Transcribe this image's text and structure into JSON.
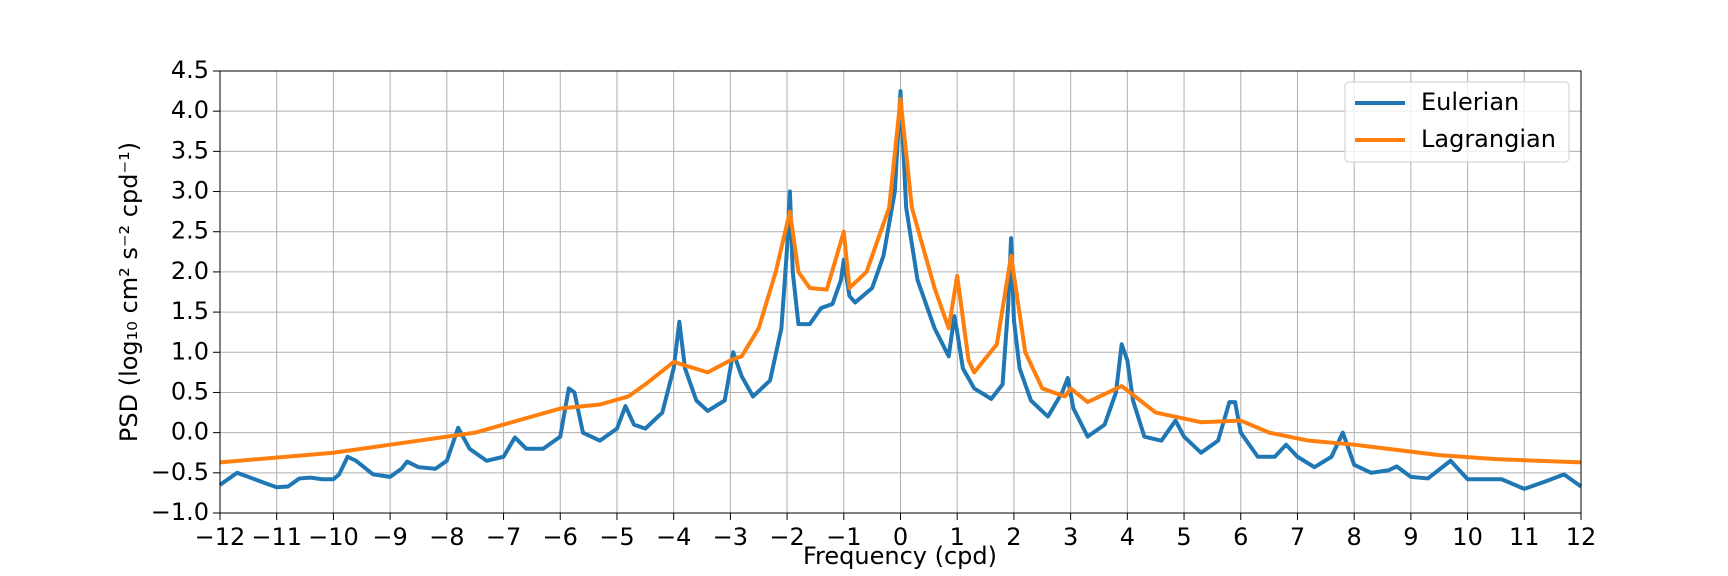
{
  "chart_data": {
    "type": "line",
    "xlabel": "Frequency (cpd)",
    "ylabel": "PSD (log₁₀ cm² s⁻² cpd⁻¹)",
    "xlim": [
      -12,
      12
    ],
    "ylim": [
      -1,
      4.5
    ],
    "xticks": [
      {
        "value": -12,
        "label": "−12"
      },
      {
        "value": -11,
        "label": "−11"
      },
      {
        "value": -10,
        "label": "−10"
      },
      {
        "value": -9,
        "label": "−9"
      },
      {
        "value": -8,
        "label": "−8"
      },
      {
        "value": -7,
        "label": "−7"
      },
      {
        "value": -6,
        "label": "−6"
      },
      {
        "value": -5,
        "label": "−5"
      },
      {
        "value": -4,
        "label": "−4"
      },
      {
        "value": -3,
        "label": "−3"
      },
      {
        "value": -2,
        "label": "−2"
      },
      {
        "value": -1,
        "label": "−1"
      },
      0,
      1,
      2,
      3,
      4,
      5,
      6,
      7,
      8,
      9,
      10,
      11,
      12
    ],
    "yticks": [
      {
        "value": -1,
        "label": "−1.0"
      },
      {
        "value": -0.5,
        "label": "−0.5"
      },
      {
        "value": 0,
        "label": "0.0"
      },
      0.5,
      {
        "value": 1,
        "label": "1.0"
      },
      1.5,
      {
        "value": 2,
        "label": "2.0"
      },
      2.5,
      {
        "value": 3,
        "label": "3.0"
      },
      3.5,
      {
        "value": 4,
        "label": "4.0"
      },
      4.5
    ],
    "grid": true,
    "legend": "upper right",
    "series": [
      {
        "name": "Eulerian",
        "color": "#1f77b4",
        "x": [
          -12,
          -11.8,
          -11.7,
          -11.5,
          -11.2,
          -11,
          -10.8,
          -10.6,
          -10.4,
          -10.2,
          -10,
          -9.9,
          -9.75,
          -9.6,
          -9.3,
          -9,
          -8.8,
          -8.7,
          -8.5,
          -8.2,
          -8,
          -7.8,
          -7.6,
          -7.3,
          -7,
          -6.8,
          -6.6,
          -6.3,
          -6,
          -5.85,
          -5.75,
          -5.6,
          -5.3,
          -5,
          -4.85,
          -4.7,
          -4.5,
          -4.2,
          -4,
          -3.9,
          -3.8,
          -3.6,
          -3.4,
          -3.1,
          -2.95,
          -2.8,
          -2.6,
          -2.3,
          -2.1,
          -2,
          -1.95,
          -1.9,
          -1.8,
          -1.6,
          -1.4,
          -1.2,
          -1.05,
          -1,
          -0.9,
          -0.8,
          -0.5,
          -0.3,
          -0.1,
          0,
          0.1,
          0.3,
          0.6,
          0.85,
          0.95,
          1,
          1.1,
          1.3,
          1.6,
          1.8,
          1.9,
          1.95,
          2,
          2.1,
          2.3,
          2.6,
          2.85,
          2.95,
          3.05,
          3.3,
          3.6,
          3.8,
          3.9,
          4,
          4.1,
          4.3,
          4.6,
          4.85,
          5,
          5.3,
          5.6,
          5.8,
          5.9,
          6,
          6.3,
          6.6,
          6.8,
          7,
          7.3,
          7.6,
          7.8,
          8,
          8.3,
          8.6,
          8.75,
          9,
          9.3,
          9.7,
          10,
          10.3,
          10.6,
          11,
          11.4,
          11.7,
          12
        ],
        "values": [
          -0.65,
          -0.55,
          -0.5,
          -0.55,
          -0.63,
          -0.68,
          -0.67,
          -0.57,
          -0.56,
          -0.58,
          -0.58,
          -0.52,
          -0.3,
          -0.35,
          -0.52,
          -0.55,
          -0.45,
          -0.36,
          -0.43,
          -0.45,
          -0.35,
          0.06,
          -0.2,
          -0.35,
          -0.3,
          -0.06,
          -0.2,
          -0.2,
          -0.05,
          0.55,
          0.5,
          0,
          -0.1,
          0.05,
          0.33,
          0.1,
          0.05,
          0.25,
          0.8,
          1.38,
          0.8,
          0.4,
          0.27,
          0.4,
          1,
          0.7,
          0.45,
          0.65,
          1.3,
          2.3,
          3,
          2,
          1.35,
          1.35,
          1.55,
          1.6,
          1.9,
          2.15,
          1.7,
          1.62,
          1.8,
          2.2,
          3,
          4.25,
          2.8,
          1.9,
          1.3,
          0.95,
          1.45,
          1.25,
          0.8,
          0.55,
          0.42,
          0.6,
          1.6,
          2.42,
          1.4,
          0.8,
          0.4,
          0.2,
          0.5,
          0.68,
          0.3,
          -0.05,
          0.1,
          0.5,
          1.1,
          0.9,
          0.4,
          -0.05,
          -0.1,
          0.15,
          -0.05,
          -0.25,
          -0.1,
          0.38,
          0.38,
          0,
          -0.3,
          -0.3,
          -0.15,
          -0.3,
          -0.43,
          -0.3,
          0,
          -0.4,
          -0.5,
          -0.47,
          -0.42,
          -0.55,
          -0.57,
          -0.35,
          -0.58,
          -0.58,
          -0.58,
          -0.7,
          -0.6,
          -0.52,
          -0.67
        ]
      },
      {
        "name": "Lagrangian",
        "color": "#ff7f0e",
        "x": [
          -12,
          -10,
          -8.5,
          -7.5,
          -7,
          -6,
          -5.3,
          -4.8,
          -4.5,
          -4,
          -3.4,
          -3,
          -2.8,
          -2.5,
          -2.2,
          -1.95,
          -1.8,
          -1.6,
          -1.3,
          -1,
          -0.9,
          -0.6,
          -0.2,
          0,
          0.2,
          0.6,
          0.85,
          1,
          1.2,
          1.3,
          1.7,
          1.95,
          2.2,
          2.5,
          2.9,
          3,
          3.3,
          3.9,
          4.5,
          5.3,
          6,
          6.5,
          7.2,
          8,
          9.5,
          10.5,
          12
        ],
        "values": [
          -0.37,
          -0.25,
          -0.1,
          0,
          0.1,
          0.3,
          0.35,
          0.45,
          0.6,
          0.88,
          0.75,
          0.9,
          0.95,
          1.3,
          2,
          2.75,
          2,
          1.8,
          1.78,
          2.5,
          1.8,
          2,
          2.8,
          4.15,
          2.8,
          1.8,
          1.3,
          1.95,
          0.9,
          0.75,
          1.1,
          2.2,
          1,
          0.55,
          0.45,
          0.55,
          0.38,
          0.58,
          0.25,
          0.13,
          0.15,
          0,
          -0.1,
          -0.15,
          -0.28,
          -0.33,
          -0.37
        ]
      }
    ]
  }
}
